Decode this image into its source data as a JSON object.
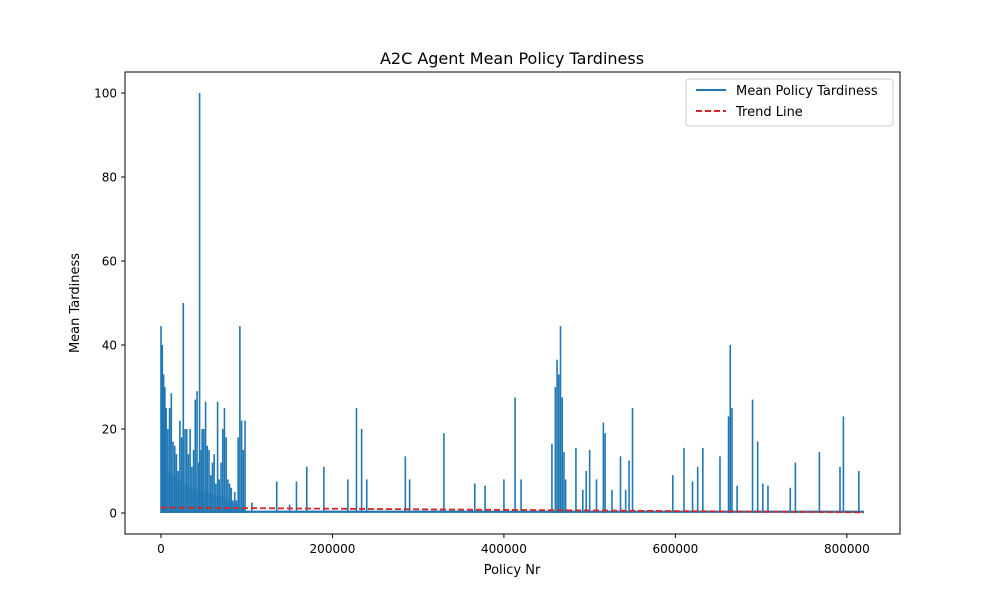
{
  "chart_data": {
    "type": "line",
    "title": "A2C Agent Mean Policy Tardiness",
    "xlabel": "Policy Nr",
    "ylabel": "Mean Tardiness",
    "xlim": [
      -42000,
      862000
    ],
    "ylim": [
      -5,
      105
    ],
    "xticks": [
      0,
      200000,
      400000,
      600000,
      800000
    ],
    "xtick_labels": [
      "0",
      "200000",
      "400000",
      "600000",
      "800000"
    ],
    "yticks": [
      0,
      20,
      40,
      60,
      80,
      100
    ],
    "ytick_labels": [
      "0",
      "20",
      "40",
      "60",
      "80",
      "100"
    ],
    "grid": false,
    "legend": {
      "location": "upper right",
      "entries": [
        "Mean Policy Tardiness",
        "Trend Line"
      ]
    },
    "colors": {
      "series": "#1f77b4",
      "trend": "#d62728"
    },
    "series": [
      {
        "name": "Mean Policy Tardiness",
        "style": "solid",
        "spikes": [
          [
            0,
            44.5
          ],
          [
            1500,
            40
          ],
          [
            3000,
            33
          ],
          [
            4500,
            30
          ],
          [
            6000,
            25
          ],
          [
            8000,
            20
          ],
          [
            10000,
            25
          ],
          [
            12000,
            28.5
          ],
          [
            14000,
            17
          ],
          [
            16000,
            16
          ],
          [
            18000,
            14
          ],
          [
            20000,
            10
          ],
          [
            22000,
            22
          ],
          [
            24000,
            18
          ],
          [
            26000,
            50
          ],
          [
            28000,
            20
          ],
          [
            30000,
            20
          ],
          [
            32000,
            14
          ],
          [
            34000,
            20
          ],
          [
            36000,
            11
          ],
          [
            38000,
            15
          ],
          [
            40000,
            27
          ],
          [
            42000,
            29
          ],
          [
            44000,
            12
          ],
          [
            45000,
            100
          ],
          [
            47000,
            15
          ],
          [
            48000,
            20
          ],
          [
            50000,
            20
          ],
          [
            52000,
            26.5
          ],
          [
            54000,
            16
          ],
          [
            56000,
            15
          ],
          [
            58000,
            9
          ],
          [
            60000,
            12
          ],
          [
            62000,
            14
          ],
          [
            64000,
            7
          ],
          [
            66000,
            26.5
          ],
          [
            68000,
            8
          ],
          [
            70000,
            12
          ],
          [
            72000,
            20
          ],
          [
            74000,
            25
          ],
          [
            76000,
            18
          ],
          [
            78000,
            8
          ],
          [
            80000,
            7
          ],
          [
            82000,
            6
          ],
          [
            84000,
            3
          ],
          [
            86000,
            5
          ],
          [
            88000,
            3
          ],
          [
            90000,
            18
          ],
          [
            92000,
            44.5
          ],
          [
            94000,
            22
          ],
          [
            96000,
            15
          ],
          [
            98000,
            22
          ],
          [
            106000,
            2.5
          ],
          [
            135000,
            7.5
          ],
          [
            150000,
            2
          ],
          [
            158000,
            7.5
          ],
          [
            170000,
            11
          ],
          [
            190000,
            11
          ],
          [
            218000,
            8
          ],
          [
            228000,
            25
          ],
          [
            234000,
            20
          ],
          [
            240000,
            8
          ],
          [
            285000,
            13.5
          ],
          [
            290000,
            8
          ],
          [
            330000,
            19
          ],
          [
            366000,
            7
          ],
          [
            378000,
            6.5
          ],
          [
            400000,
            8
          ],
          [
            413000,
            27.5
          ],
          [
            420000,
            8
          ],
          [
            456000,
            16.5
          ],
          [
            460000,
            30
          ],
          [
            462000,
            36.5
          ],
          [
            464000,
            33
          ],
          [
            466000,
            44.5
          ],
          [
            468000,
            27.5
          ],
          [
            470000,
            14.5
          ],
          [
            472000,
            8
          ],
          [
            484000,
            15.5
          ],
          [
            492000,
            5.5
          ],
          [
            496000,
            10
          ],
          [
            500000,
            15
          ],
          [
            508000,
            8
          ],
          [
            516000,
            21.5
          ],
          [
            518000,
            19
          ],
          [
            526000,
            5.5
          ],
          [
            536000,
            13.5
          ],
          [
            542000,
            5.5
          ],
          [
            546000,
            12.5
          ],
          [
            550000,
            25
          ],
          [
            597000,
            9
          ],
          [
            610000,
            15.5
          ],
          [
            620000,
            7.5
          ],
          [
            626000,
            11
          ],
          [
            632000,
            15.5
          ],
          [
            652000,
            13.5
          ],
          [
            662000,
            23
          ],
          [
            664000,
            40
          ],
          [
            666000,
            25
          ],
          [
            672000,
            6.5
          ],
          [
            690000,
            27
          ],
          [
            696000,
            17
          ],
          [
            702000,
            7
          ],
          [
            708000,
            6.5
          ],
          [
            734000,
            6
          ],
          [
            740000,
            12
          ],
          [
            768000,
            14.5
          ],
          [
            792000,
            11
          ],
          [
            796000,
            23
          ],
          [
            814000,
            10
          ]
        ]
      },
      {
        "name": "Trend Line",
        "style": "dashed",
        "x": [
          0,
          820000
        ],
        "y": [
          1.3,
          0.15
        ]
      }
    ]
  }
}
